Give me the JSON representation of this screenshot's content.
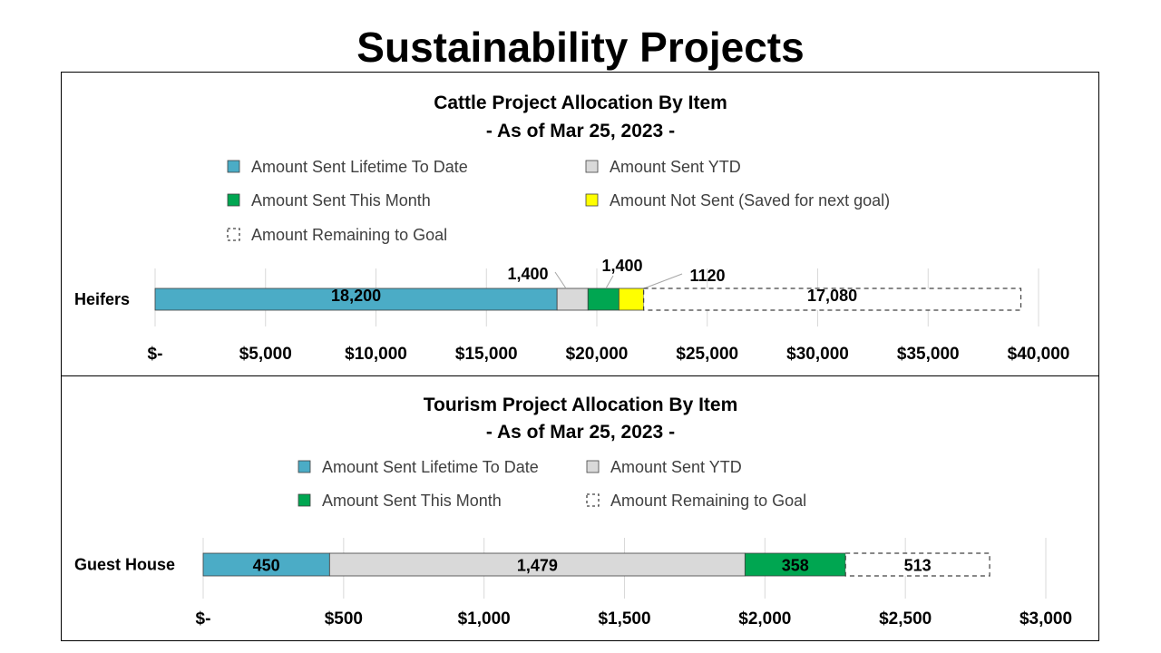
{
  "page": {
    "title": "Sustainability Projects"
  },
  "colors": {
    "lifetime": "#4bacc6",
    "ytd": "#d9d9d9",
    "month": "#00a651",
    "not_sent": "#ffff00",
    "remaining": "#ffffff",
    "border": "#404040",
    "grid": "#d9d9d9"
  },
  "chart_data": [
    {
      "type": "bar",
      "orientation": "horizontal",
      "stacked": true,
      "title": "Cattle Project Allocation By Item",
      "subtitle": "- As of Mar 25, 2023 -",
      "categories": [
        "Heifers"
      ],
      "series": [
        {
          "name": "Amount Sent Lifetime To Date",
          "key": "lifetime",
          "values": [
            18200
          ],
          "label": "18,200"
        },
        {
          "name": "Amount Sent YTD",
          "key": "ytd",
          "values": [
            1400
          ],
          "label": "1,400"
        },
        {
          "name": "Amount Sent This Month",
          "key": "month",
          "values": [
            1400
          ],
          "label": "1,400"
        },
        {
          "name": "Amount Not Sent (Saved for next goal)",
          "key": "not_sent",
          "values": [
            1120
          ],
          "label": "1120"
        },
        {
          "name": "Amount Remaining to Goal",
          "key": "remaining",
          "dashed": true,
          "values": [
            17080
          ],
          "label": "17,080"
        }
      ],
      "xlim": [
        0,
        40000
      ],
      "xticks": [
        0,
        5000,
        10000,
        15000,
        20000,
        25000,
        30000,
        35000,
        40000
      ],
      "xtick_labels": [
        "$-",
        "$5,000",
        "$10,000",
        "$15,000",
        "$20,000",
        "$25,000",
        "$30,000",
        "$35,000",
        "$40,000"
      ],
      "grid": true,
      "legend_position": "top"
    },
    {
      "type": "bar",
      "orientation": "horizontal",
      "stacked": true,
      "title": "Tourism Project Allocation By Item",
      "subtitle": "- As of Mar 25, 2023 -",
      "categories": [
        "Guest House"
      ],
      "series": [
        {
          "name": "Amount Sent Lifetime To Date",
          "key": "lifetime",
          "values": [
            450
          ],
          "label": "450"
        },
        {
          "name": "Amount Sent YTD",
          "key": "ytd",
          "values": [
            1479
          ],
          "label": "1,479"
        },
        {
          "name": "Amount Sent This Month",
          "key": "month",
          "values": [
            358
          ],
          "label": "358"
        },
        {
          "name": "Amount Remaining to Goal",
          "key": "remaining",
          "dashed": true,
          "values": [
            513
          ],
          "label": "513"
        }
      ],
      "xlim": [
        0,
        3000
      ],
      "xticks": [
        0,
        500,
        1000,
        1500,
        2000,
        2500,
        3000
      ],
      "xtick_labels": [
        "$-",
        "$500",
        "$1,000",
        "$1,500",
        "$2,000",
        "$2,500",
        "$3,000"
      ],
      "grid": true,
      "legend_position": "top"
    }
  ]
}
